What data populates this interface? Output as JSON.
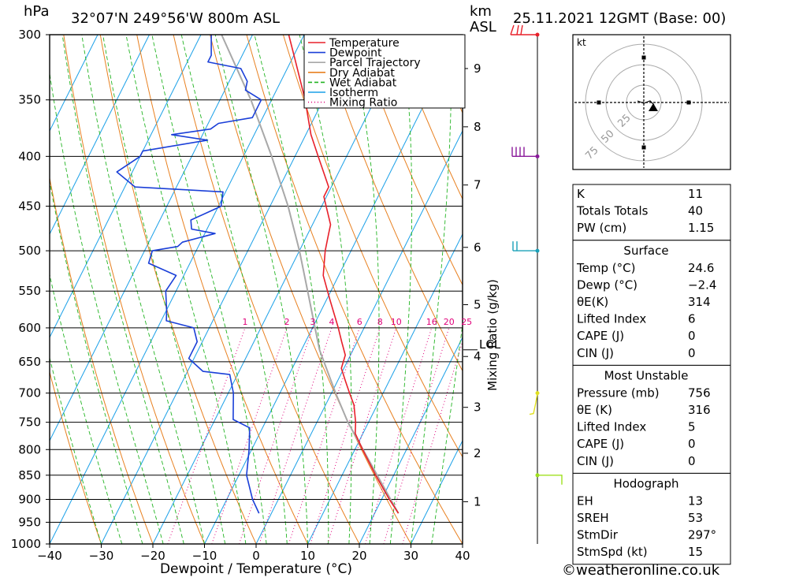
{
  "header": {
    "hpa_label": "hPa",
    "location": "32°07'N  249°56'W  800m  ASL",
    "km_label": "km",
    "asl_label": "ASL",
    "date": "25.11.2021  12GMT  (Base: 00)"
  },
  "footer": {
    "copyright": "©weatheronline.co.uk"
  },
  "chart_data": {
    "type": "skew-t",
    "xlabel": "Dewpoint / Temperature (°C)",
    "ylabel": "hPa",
    "mixing_ratio_axis_label": "Mixing Ratio (g/kg)",
    "xlim": [
      -40,
      40
    ],
    "ylim": [
      1000,
      300
    ],
    "x_ticks": [
      {
        "value": -40,
        "label": "−40"
      },
      {
        "value": -30,
        "label": "−30"
      },
      {
        "value": -20,
        "label": "−20"
      },
      {
        "value": -10,
        "label": "−10"
      },
      {
        "value": 0,
        "label": "0"
      },
      {
        "value": 10,
        "label": "10"
      },
      {
        "value": 20,
        "label": "20"
      },
      {
        "value": 30,
        "label": "30"
      },
      {
        "value": 40,
        "label": "40"
      }
    ],
    "pressure_levels": [
      {
        "p": 300,
        "label": "300"
      },
      {
        "p": 350,
        "label": "350"
      },
      {
        "p": 400,
        "label": "400"
      },
      {
        "p": 450,
        "label": "450"
      },
      {
        "p": 500,
        "label": "500"
      },
      {
        "p": 550,
        "label": "550"
      },
      {
        "p": 600,
        "label": "600"
      },
      {
        "p": 650,
        "label": "650"
      },
      {
        "p": 700,
        "label": "700"
      },
      {
        "p": 750,
        "label": "750"
      },
      {
        "p": 800,
        "label": "800"
      },
      {
        "p": 850,
        "label": "850"
      },
      {
        "p": 900,
        "label": "900"
      },
      {
        "p": 950,
        "label": "950"
      },
      {
        "p": 1000,
        "label": "1000"
      }
    ],
    "km_ticks": [
      {
        "p": 905,
        "label": "1"
      },
      {
        "p": 807,
        "label": "2"
      },
      {
        "p": 724,
        "label": "3"
      },
      {
        "p": 642,
        "label": "4"
      },
      {
        "p": 568,
        "label": "5"
      },
      {
        "p": 496,
        "label": "6"
      },
      {
        "p": 428,
        "label": "7"
      },
      {
        "p": 373,
        "label": "8"
      },
      {
        "p": 325,
        "label": "9"
      }
    ],
    "lcl": {
      "p": 632,
      "label": "LCL"
    },
    "mixing_ratio_lines": [
      {
        "w": 1,
        "label": "1"
      },
      {
        "w": 2,
        "label": "2"
      },
      {
        "w": 3,
        "label": "3"
      },
      {
        "w": 4,
        "label": "4"
      },
      {
        "w": 6,
        "label": "6"
      },
      {
        "w": 8,
        "label": "8"
      },
      {
        "w": 10,
        "label": "10"
      },
      {
        "w": 16,
        "label": "16"
      },
      {
        "w": 20,
        "label": "20"
      },
      {
        "w": 25,
        "label": "25"
      }
    ],
    "series": [
      {
        "name": "Temperature",
        "color": "#e8202a",
        "points": [
          {
            "p": 930,
            "t": 24.6
          },
          {
            "p": 900,
            "t": 21.5
          },
          {
            "p": 850,
            "t": 16.5
          },
          {
            "p": 800,
            "t": 11.5
          },
          {
            "p": 770,
            "t": 8.5
          },
          {
            "p": 750,
            "t": 7.5
          },
          {
            "p": 720,
            "t": 5.5
          },
          {
            "p": 700,
            "t": 3.5
          },
          {
            "p": 680,
            "t": 1.5
          },
          {
            "p": 660,
            "t": -0.5
          },
          {
            "p": 640,
            "t": -1.0
          },
          {
            "p": 620,
            "t": -3.0
          },
          {
            "p": 600,
            "t": -5.0
          },
          {
            "p": 560,
            "t": -9.5
          },
          {
            "p": 530,
            "t": -13.0
          },
          {
            "p": 500,
            "t": -15.0
          },
          {
            "p": 480,
            "t": -16.0
          },
          {
            "p": 470,
            "t": -16.5
          },
          {
            "p": 440,
            "t": -20.5
          },
          {
            "p": 430,
            "t": -20.5
          },
          {
            "p": 400,
            "t": -25.5
          },
          {
            "p": 380,
            "t": -29.0
          },
          {
            "p": 350,
            "t": -33.5
          },
          {
            "p": 320,
            "t": -39.0
          },
          {
            "p": 300,
            "t": -43.0
          }
        ]
      },
      {
        "name": "Dewpoint",
        "color": "#1a3fd8",
        "points": [
          {
            "p": 930,
            "t": -2.4
          },
          {
            "p": 900,
            "t": -5.0
          },
          {
            "p": 850,
            "t": -8.5
          },
          {
            "p": 800,
            "t": -10.5
          },
          {
            "p": 760,
            "t": -12.5
          },
          {
            "p": 745,
            "t": -16.5
          },
          {
            "p": 700,
            "t": -19.0
          },
          {
            "p": 670,
            "t": -21.5
          },
          {
            "p": 665,
            "t": -27.0
          },
          {
            "p": 645,
            "t": -31.0
          },
          {
            "p": 620,
            "t": -31.0
          },
          {
            "p": 600,
            "t": -33.0
          },
          {
            "p": 590,
            "t": -39.0
          },
          {
            "p": 575,
            "t": -40.0
          },
          {
            "p": 550,
            "t": -42.0
          },
          {
            "p": 530,
            "t": -41.5
          },
          {
            "p": 515,
            "t": -48.0
          },
          {
            "p": 500,
            "t": -48.5
          },
          {
            "p": 495,
            "t": -44.0
          },
          {
            "p": 490,
            "t": -43.5
          },
          {
            "p": 480,
            "t": -38.0
          },
          {
            "p": 475,
            "t": -43.0
          },
          {
            "p": 465,
            "t": -44.0
          },
          {
            "p": 455,
            "t": -41.0
          },
          {
            "p": 450,
            "t": -39.5
          },
          {
            "p": 435,
            "t": -40.5
          },
          {
            "p": 430,
            "t": -58.0
          },
          {
            "p": 415,
            "t": -63.0
          },
          {
            "p": 400,
            "t": -60.0
          },
          {
            "p": 395,
            "t": -60.0
          },
          {
            "p": 385,
            "t": -48.5
          },
          {
            "p": 380,
            "t": -56.0
          },
          {
            "p": 375,
            "t": -49.0
          },
          {
            "p": 370,
            "t": -48.0
          },
          {
            "p": 365,
            "t": -42.0
          },
          {
            "p": 350,
            "t": -42.0
          },
          {
            "p": 342,
            "t": -46.0
          },
          {
            "p": 335,
            "t": -46.5
          },
          {
            "p": 325,
            "t": -49.0
          },
          {
            "p": 320,
            "t": -56.0
          },
          {
            "p": 315,
            "t": -56.0
          },
          {
            "p": 300,
            "t": -58.0
          }
        ]
      },
      {
        "name": "Parcel Trajectory",
        "color": "#a8a8a8",
        "points": [
          {
            "p": 930,
            "t": 24.6
          },
          {
            "p": 850,
            "t": 16.8
          },
          {
            "p": 750,
            "t": 6.0
          },
          {
            "p": 700,
            "t": 0.8
          },
          {
            "p": 632,
            "t": -6.5
          },
          {
            "p": 600,
            "t": -9.5
          },
          {
            "p": 550,
            "t": -14.5
          },
          {
            "p": 500,
            "t": -20.0
          },
          {
            "p": 450,
            "t": -26.5
          },
          {
            "p": 400,
            "t": -34.5
          },
          {
            "p": 350,
            "t": -44.0
          },
          {
            "p": 300,
            "t": -56.0
          }
        ]
      }
    ],
    "legend": [
      {
        "label": "Temperature",
        "color": "#e8202a",
        "style": "solid"
      },
      {
        "label": "Dewpoint",
        "color": "#1a3fd8",
        "style": "solid"
      },
      {
        "label": "Parcel Trajectory",
        "color": "#a8a8a8",
        "style": "solid"
      },
      {
        "label": "Dry Adiabat",
        "color": "#e88020",
        "style": "solid"
      },
      {
        "label": "Wet Adiabat",
        "color": "#22b422",
        "style": "dashed"
      },
      {
        "label": "Isotherm",
        "color": "#1aa0e8",
        "style": "solid"
      },
      {
        "label": "Mixing Ratio",
        "color": "#e0007a",
        "style": "dotted"
      }
    ],
    "hodograph": {
      "unit_label": "kt",
      "ring_labels": [
        "25",
        "50",
        "75"
      ]
    },
    "wind_barbs": [
      {
        "p": 300,
        "color": "#e8202a"
      },
      {
        "p": 400,
        "color": "#8a1a9a"
      },
      {
        "p": 500,
        "color": "#1aa0b8"
      },
      {
        "p": 700,
        "color": "#e0e020"
      },
      {
        "p": 850,
        "color": "#a0e020"
      }
    ]
  },
  "indices": {
    "general": [
      {
        "label": "K",
        "value": "11"
      },
      {
        "label": "Totals Totals",
        "value": "40"
      },
      {
        "label": "PW (cm)",
        "value": "1.15"
      }
    ],
    "surface": {
      "title": "Surface",
      "rows": [
        {
          "label": "Temp (°C)",
          "value": "24.6"
        },
        {
          "label": "Dewp (°C)",
          "value": "−2.4"
        },
        {
          "label": "θE(K)",
          "value": "314"
        },
        {
          "label": "Lifted Index",
          "value": "6"
        },
        {
          "label": "CAPE (J)",
          "value": "0"
        },
        {
          "label": "CIN (J)",
          "value": "0"
        }
      ]
    },
    "most_unstable": {
      "title": "Most Unstable",
      "rows": [
        {
          "label": "Pressure (mb)",
          "value": "756"
        },
        {
          "label": "θE (K)",
          "value": "316"
        },
        {
          "label": "Lifted Index",
          "value": "5"
        },
        {
          "label": "CAPE (J)",
          "value": "0"
        },
        {
          "label": "CIN (J)",
          "value": "0"
        }
      ]
    },
    "hodograph": {
      "title": "Hodograph",
      "rows": [
        {
          "label": "EH",
          "value": "13"
        },
        {
          "label": "SREH",
          "value": "53"
        },
        {
          "label": "StmDir",
          "value": "297°"
        },
        {
          "label": "StmSpd (kt)",
          "value": "15"
        }
      ]
    }
  }
}
